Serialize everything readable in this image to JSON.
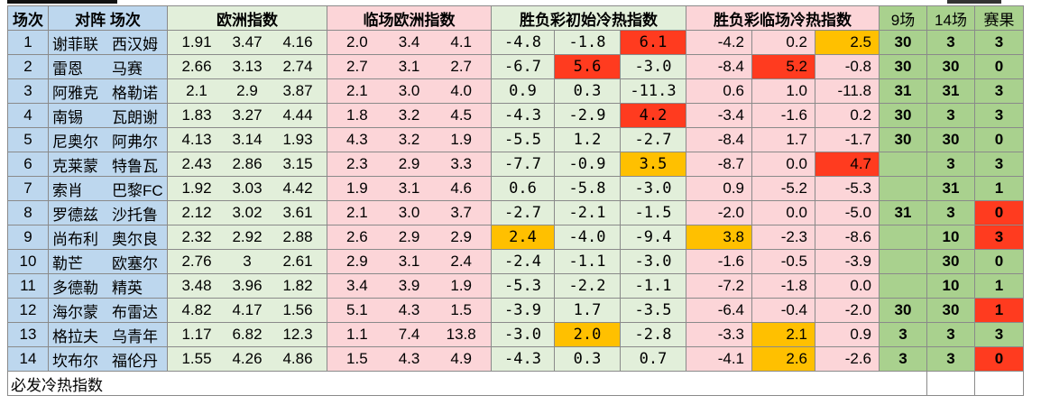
{
  "headers": {
    "idx": "场次",
    "teams": "对阵 场次",
    "eu": "欧洲指数",
    "live_eu": "临场欧洲指数",
    "init_hc": "胜负彩初始冷热指数",
    "live_hc": "胜负彩临场冷热指数",
    "h9": "9场",
    "h14": "14场",
    "result": "赛果"
  },
  "colors": {
    "red": "#ff3b1f",
    "orange": "#ffc000",
    "blue": "#bdd7ee",
    "green": "#e2efda",
    "pink": "#fcd5d8",
    "dgreen": "#a9d18e"
  },
  "rows": [
    {
      "idx": "1",
      "home": "谢菲联",
      "away": "西汉姆",
      "eu": [
        "1.91",
        "3.47",
        "4.16"
      ],
      "live": [
        "2.0",
        "3.4",
        "4.1"
      ],
      "init": [
        "-4.8",
        "-1.8",
        "6.1"
      ],
      "init_hl": [
        0,
        0,
        "red"
      ],
      "lt": [
        "-4.2",
        "0.2",
        "2.5"
      ],
      "lt_hl": [
        0,
        0,
        "orange"
      ],
      "n9": "30",
      "n14": "3",
      "res": "3",
      "res_red": false
    },
    {
      "idx": "2",
      "home": "雷恩",
      "away": "马赛",
      "eu": [
        "2.66",
        "3.13",
        "2.74"
      ],
      "live": [
        "2.7",
        "3.1",
        "2.7"
      ],
      "init": [
        "-6.7",
        "5.6",
        "-3.0"
      ],
      "init_hl": [
        0,
        "red",
        0
      ],
      "lt": [
        "-8.4",
        "5.2",
        "-0.8"
      ],
      "lt_hl": [
        0,
        "red",
        0
      ],
      "n9": "30",
      "n14": "30",
      "res": "0",
      "res_red": false
    },
    {
      "idx": "3",
      "home": "阿雅克",
      "away": "格勒诺",
      "eu": [
        "2.1",
        "2.9",
        "3.87"
      ],
      "live": [
        "2.1",
        "3.0",
        "4.0"
      ],
      "init": [
        "0.9",
        "0.3",
        "-11.3"
      ],
      "init_hl": [
        0,
        0,
        0
      ],
      "lt": [
        "0.6",
        "1.0",
        "-11.8"
      ],
      "lt_hl": [
        0,
        0,
        0
      ],
      "n9": "31",
      "n14": "31",
      "res": "3",
      "res_red": false
    },
    {
      "idx": "4",
      "home": "南锡",
      "away": "瓦朗谢",
      "eu": [
        "1.83",
        "3.27",
        "4.44"
      ],
      "live": [
        "1.8",
        "3.2",
        "4.5"
      ],
      "init": [
        "-4.3",
        "-2.9",
        "4.2"
      ],
      "init_hl": [
        0,
        0,
        "red"
      ],
      "lt": [
        "-3.4",
        "-1.6",
        "0.2"
      ],
      "lt_hl": [
        0,
        0,
        0
      ],
      "n9": "30",
      "n14": "3",
      "res": "3",
      "res_red": false
    },
    {
      "idx": "5",
      "home": "尼奥尔",
      "away": "阿弗尔",
      "eu": [
        "4.13",
        "3.14",
        "1.93"
      ],
      "live": [
        "4.3",
        "3.2",
        "1.9"
      ],
      "init": [
        "-5.5",
        "1.2",
        "-2.7"
      ],
      "init_hl": [
        0,
        0,
        0
      ],
      "lt": [
        "-8.4",
        "1.7",
        "-1.7"
      ],
      "lt_hl": [
        0,
        0,
        0
      ],
      "n9": "30",
      "n14": "30",
      "res": "0",
      "res_red": false
    },
    {
      "idx": "6",
      "home": "克莱蒙",
      "away": "特鲁瓦",
      "eu": [
        "2.43",
        "2.86",
        "3.15"
      ],
      "live": [
        "2.3",
        "2.9",
        "3.3"
      ],
      "init": [
        "-7.7",
        "-0.9",
        "3.5"
      ],
      "init_hl": [
        0,
        0,
        "orange"
      ],
      "lt": [
        "-8.7",
        "0.0",
        "4.7"
      ],
      "lt_hl": [
        0,
        0,
        "red"
      ],
      "n9": "",
      "n14": "3",
      "res": "3",
      "res_red": false
    },
    {
      "idx": "7",
      "home": "索肖",
      "away": "巴黎FC",
      "eu": [
        "1.92",
        "3.03",
        "4.42"
      ],
      "live": [
        "1.9",
        "3.1",
        "4.6"
      ],
      "init": [
        "0.6",
        "-5.8",
        "-3.0"
      ],
      "init_hl": [
        0,
        0,
        0
      ],
      "lt": [
        "0.9",
        "-5.2",
        "-5.3"
      ],
      "lt_hl": [
        0,
        0,
        0
      ],
      "n9": "",
      "n14": "31",
      "res": "1",
      "res_red": false
    },
    {
      "idx": "8",
      "home": "罗德兹",
      "away": "沙托鲁",
      "eu": [
        "2.12",
        "3.02",
        "3.61"
      ],
      "live": [
        "2.1",
        "3.0",
        "3.7"
      ],
      "init": [
        "-2.7",
        "-2.1",
        "-1.5"
      ],
      "init_hl": [
        0,
        0,
        0
      ],
      "lt": [
        "-2.0",
        "0.0",
        "-5.0"
      ],
      "lt_hl": [
        0,
        0,
        0
      ],
      "n9": "31",
      "n14": "3",
      "res": "0",
      "res_red": true
    },
    {
      "idx": "9",
      "home": "尚布利",
      "away": "奥尔良",
      "eu": [
        "2.32",
        "2.92",
        "2.88"
      ],
      "live": [
        "2.6",
        "2.9",
        "2.9"
      ],
      "init": [
        "2.4",
        "-4.0",
        "-9.4"
      ],
      "init_hl": [
        "orange",
        0,
        0
      ],
      "lt": [
        "3.8",
        "-2.3",
        "-8.6"
      ],
      "lt_hl": [
        "orange",
        0,
        0
      ],
      "n9": "",
      "n14": "10",
      "res": "3",
      "res_red": true
    },
    {
      "idx": "10",
      "home": "勒芒",
      "away": "欧塞尔",
      "eu": [
        "2.76",
        "3",
        "2.61"
      ],
      "live": [
        "2.9",
        "3.1",
        "2.4"
      ],
      "init": [
        "-2.4",
        "-1.1",
        "-3.0"
      ],
      "init_hl": [
        0,
        0,
        0
      ],
      "lt": [
        "-1.6",
        "-0.5",
        "-3.9"
      ],
      "lt_hl": [
        0,
        0,
        0
      ],
      "n9": "",
      "n14": "30",
      "res": "0",
      "res_red": false
    },
    {
      "idx": "11",
      "home": "多德勒",
      "away": "精英",
      "eu": [
        "3.48",
        "3.96",
        "1.82"
      ],
      "live": [
        "3.4",
        "3.9",
        "1.9"
      ],
      "init": [
        "-5.3",
        "-2.2",
        "-1.1"
      ],
      "init_hl": [
        0,
        0,
        0
      ],
      "lt": [
        "-7.2",
        "-1.8",
        "0.0"
      ],
      "lt_hl": [
        0,
        0,
        0
      ],
      "n9": "",
      "n14": "10",
      "res": "1",
      "res_red": false
    },
    {
      "idx": "12",
      "home": "海尔蒙",
      "away": "布雷达",
      "eu": [
        "4.82",
        "4.17",
        "1.56"
      ],
      "live": [
        "5.1",
        "4.3",
        "1.5"
      ],
      "init": [
        "-3.9",
        "1.7",
        "-3.5"
      ],
      "init_hl": [
        0,
        0,
        0
      ],
      "lt": [
        "-6.4",
        "-0.4",
        "-2.0"
      ],
      "lt_hl": [
        0,
        0,
        0
      ],
      "n9": "30",
      "n14": "30",
      "res": "1",
      "res_red": true
    },
    {
      "idx": "13",
      "home": "格拉夫",
      "away": "乌青年",
      "eu": [
        "1.17",
        "6.82",
        "12.3"
      ],
      "live": [
        "1.1",
        "7.4",
        "13.8"
      ],
      "init": [
        "-3.0",
        "2.0",
        "-2.8"
      ],
      "init_hl": [
        0,
        "orange",
        0
      ],
      "lt": [
        "-3.3",
        "2.1",
        "0.9"
      ],
      "lt_hl": [
        0,
        "orange",
        0
      ],
      "n9": "3",
      "n14": "3",
      "res": "3",
      "res_red": false
    },
    {
      "idx": "14",
      "home": "坎布尔",
      "away": "福伦丹",
      "eu": [
        "1.55",
        "4.26",
        "4.86"
      ],
      "live": [
        "1.5",
        "4.3",
        "4.9"
      ],
      "init": [
        "-4.3",
        "0.3",
        "0.7"
      ],
      "init_hl": [
        0,
        0,
        0
      ],
      "lt": [
        "-4.1",
        "2.6",
        "-2.6"
      ],
      "lt_hl": [
        0,
        "orange",
        0
      ],
      "n9": "3",
      "n14": "3",
      "res": "0",
      "res_red": true
    }
  ],
  "footer": "必发冷热指数"
}
